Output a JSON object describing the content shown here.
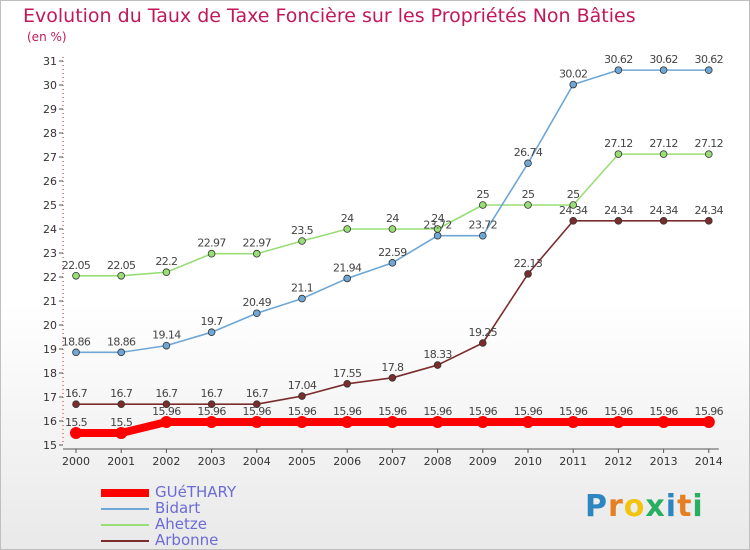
{
  "title": "Evolution du Taux de Taxe Foncière sur les Propriétés Non Bâties",
  "unit_label": "(en %)",
  "brand": {
    "text": "Proxiti",
    "letters": [
      "P",
      "r",
      "o",
      "x",
      "i",
      "t",
      "i"
    ],
    "letter_colors": [
      "#2e86c1",
      "#e67e22",
      "#f1c40f",
      "#27ae60",
      "#2e86c1",
      "#e67e22",
      "#27ae60"
    ]
  },
  "chart_data": {
    "type": "line",
    "title": "Evolution du Taux de Taxe Foncière sur les Propriétés Non Bâties",
    "ylabel": "(en %)",
    "xlabel": "",
    "x": [
      2000,
      2001,
      2002,
      2003,
      2004,
      2005,
      2006,
      2007,
      2008,
      2009,
      2010,
      2011,
      2012,
      2013,
      2014
    ],
    "ylim": [
      15,
      31
    ],
    "yticks": [
      15,
      16,
      17,
      18,
      19,
      20,
      21,
      22,
      23,
      24,
      25,
      26,
      27,
      28,
      29,
      30,
      31
    ],
    "grid": false,
    "legend_position": "bottom-left",
    "series": [
      {
        "name": "Arbonne",
        "color": "#7b2d2d",
        "values": [
          16.7,
          16.7,
          16.7,
          16.7,
          16.7,
          17.04,
          17.55,
          17.8,
          18.33,
          19.25,
          22.13,
          24.34,
          24.34,
          24.34,
          24.34
        ],
        "labels": [
          "16.7",
          "16.7",
          "16.7",
          "16.7",
          "16.7",
          "17.04",
          "17.55",
          "17.8",
          "18.33",
          "19.25",
          "22.13",
          "24.34",
          "24.34",
          "24.34",
          "24.34"
        ]
      },
      {
        "name": "Ahetze",
        "color": "#99dd77",
        "values": [
          22.05,
          22.05,
          22.2,
          22.97,
          22.97,
          23.5,
          24,
          24,
          24,
          25,
          25,
          25,
          27.12,
          27.12,
          27.12
        ],
        "labels": [
          "22.05",
          "22.05",
          "22.2",
          "22.97",
          "22.97",
          "23.5",
          "24",
          "24",
          "24",
          "25",
          "25",
          "25",
          "27.12",
          "27.12",
          "27.12"
        ]
      },
      {
        "name": "Bidart",
        "color": "#6ea6d6",
        "values": [
          18.86,
          18.86,
          19.14,
          19.7,
          20.49,
          21.1,
          21.94,
          22.59,
          23.72,
          23.72,
          26.74,
          30.02,
          30.62,
          30.62,
          30.62
        ],
        "labels": [
          "18.86",
          "18.86",
          "19.14",
          "19.7",
          "20.49",
          "21.1",
          "21.94",
          "22.59",
          "23.72",
          "23.72",
          "26.74",
          "30.02",
          "30.62",
          "30.62",
          "30.62"
        ]
      },
      {
        "name": "GUéTHARY",
        "color": "#ff0000",
        "values": [
          15.5,
          15.5,
          15.96,
          15.96,
          15.96,
          15.96,
          15.96,
          15.96,
          15.96,
          15.96,
          15.96,
          15.96,
          15.96,
          15.96,
          15.96
        ],
        "labels": [
          "15.5",
          "15.5",
          "15.96",
          "15.96",
          "15.96",
          "15.96",
          "15.96",
          "15.96",
          "15.96",
          "15.96",
          "15.96",
          "15.96",
          "15.96",
          "15.96",
          "15.96"
        ]
      }
    ],
    "legend": [
      "GUéTHARY",
      "Bidart",
      "Ahetze",
      "Arbonne"
    ]
  }
}
